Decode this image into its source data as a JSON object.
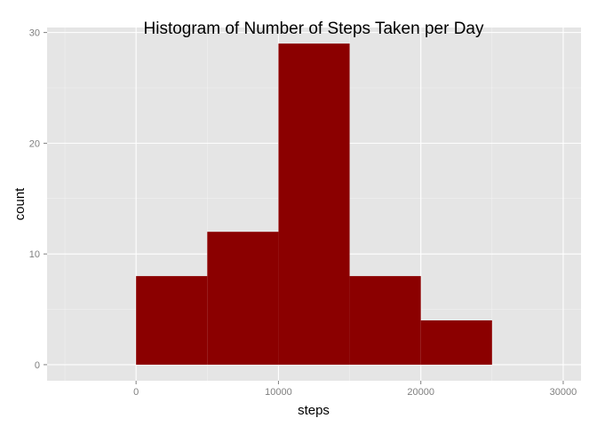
{
  "chart_data": {
    "type": "bar",
    "subtype": "histogram",
    "title": "Histogram of Number of Steps Taken per Day",
    "xlabel": "steps",
    "ylabel": "count",
    "bins": [
      {
        "start": 0,
        "end": 5000,
        "count": 8
      },
      {
        "start": 5000,
        "end": 10000,
        "count": 12
      },
      {
        "start": 10000,
        "end": 15000,
        "count": 29
      },
      {
        "start": 15000,
        "end": 20000,
        "count": 8
      },
      {
        "start": 20000,
        "end": 25000,
        "count": 4
      }
    ],
    "xlim": [
      -6250,
      31250
    ],
    "ylim": [
      -1.45,
      30.45
    ],
    "xticks": [
      0,
      10000,
      20000,
      30000
    ],
    "yticks": [
      0,
      10,
      20,
      30
    ],
    "xtick_labels": [
      "0",
      "10000",
      "20000",
      "30000"
    ],
    "ytick_labels": [
      "0",
      "10",
      "20",
      "30"
    ],
    "bar_color": "#8B0000",
    "panel_background": "#E5E5E5",
    "grid_color": "#FFFFFF",
    "grid": true
  }
}
